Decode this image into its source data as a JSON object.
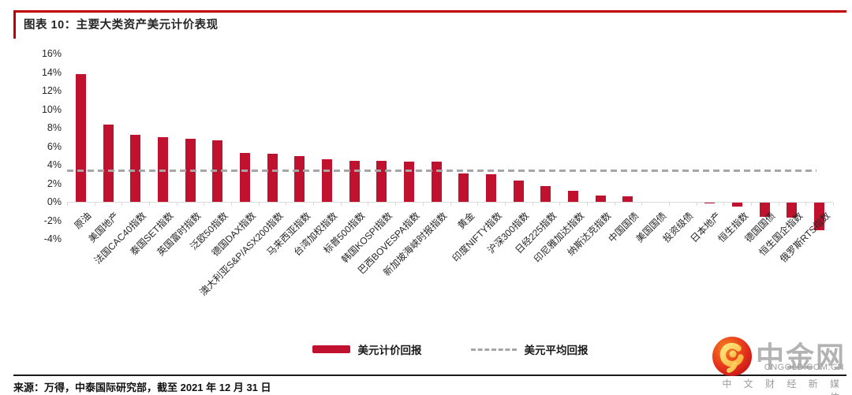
{
  "header": {
    "title": "图表 10：主要大类资产美元计价表现"
  },
  "chart_data": {
    "type": "bar",
    "title": "主要大类资产美元计价表现",
    "categories": [
      "原油",
      "美国地产",
      "法国CAC40指数",
      "泰国SET指数",
      "英国富时指数",
      "泛欧50指数",
      "德国DAX指数",
      "澳大利亚S&P/ASX200指数",
      "马来西亚指数",
      "台湾加权指数",
      "标普500指数",
      "韩国KOSPI指数",
      "巴西BOVESPA指数",
      "新加坡海峡时报指数",
      "黄金",
      "印度NIFTY指数",
      "沪深300指数",
      "日经225指数",
      "印尼雅加达指数",
      "纳斯达克指数",
      "中国国债",
      "美国国债",
      "投资级债",
      "日本地产",
      "恒生指数",
      "德国国债",
      "恒生国企指数",
      "俄罗斯RTS指数"
    ],
    "values": [
      13.8,
      8.3,
      7.2,
      7.0,
      6.8,
      6.6,
      5.3,
      5.2,
      4.9,
      4.6,
      4.4,
      4.4,
      4.3,
      4.3,
      3.1,
      3.0,
      2.3,
      1.7,
      1.2,
      0.7,
      0.6,
      0.0,
      0.0,
      -0.1,
      -0.4,
      -1.5,
      -1.6,
      -3.0
    ],
    "series_name": "美元计价回报",
    "average_line": {
      "label": "美元平均回报",
      "value": 3.4
    },
    "ylim": [
      -4,
      16
    ],
    "ytick_step": 2,
    "yticks": [
      "16%",
      "14%",
      "12%",
      "10%",
      "8%",
      "6%",
      "4%",
      "2%",
      "0%",
      "-2%",
      "-4%"
    ],
    "grid": false,
    "legend_position": "bottom",
    "bar_color": "#c0122f",
    "average_color": "#a6a6a6"
  },
  "legend": {
    "bar_label": "美元计价回报",
    "avg_label": "美元平均回报"
  },
  "footer": {
    "source": "来源：万得，中泰国际研究部，截至 2021 年 12 月 31 日"
  },
  "logo": {
    "name": "中金网",
    "domain": "CNGOLD.COM.CN",
    "tagline": "中 文 财 经 新 媒 体"
  },
  "colors": {
    "accent_red": "#c00000",
    "bar_red": "#c0122f",
    "dash_gray": "#a6a6a6"
  }
}
